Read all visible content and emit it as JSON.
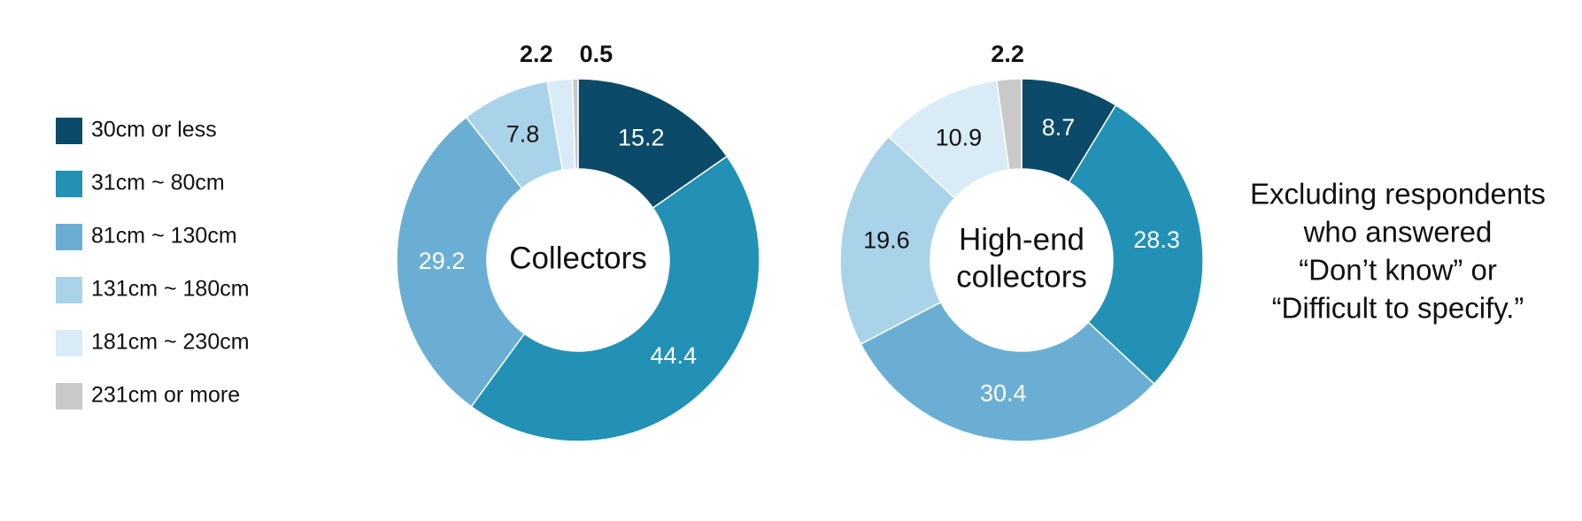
{
  "legend": {
    "categories": [
      "30cm or less",
      "31cm ~ 80cm",
      "81cm ~ 130cm",
      "131cm ~ 180cm",
      "181cm ~ 230cm",
      "231cm or more"
    ],
    "colors": [
      "#0b4a68",
      "#2291b5",
      "#6aafd3",
      "#a9d3e9",
      "#d8ebf6",
      "#c9c9c9"
    ]
  },
  "chart_data": [
    {
      "type": "donut",
      "center_label": [
        "Collectors"
      ],
      "values": [
        15.2,
        44.4,
        29.2,
        7.8,
        2.2,
        0.5
      ]
    },
    {
      "type": "donut",
      "center_label": [
        "High-end",
        "collectors"
      ],
      "values": [
        8.7,
        28.3,
        30.4,
        19.6,
        10.9,
        2.2
      ]
    }
  ],
  "note": [
    "Excluding respondents",
    "who answered",
    "“Don’t know” or",
    "“Difficult to specify.”"
  ]
}
